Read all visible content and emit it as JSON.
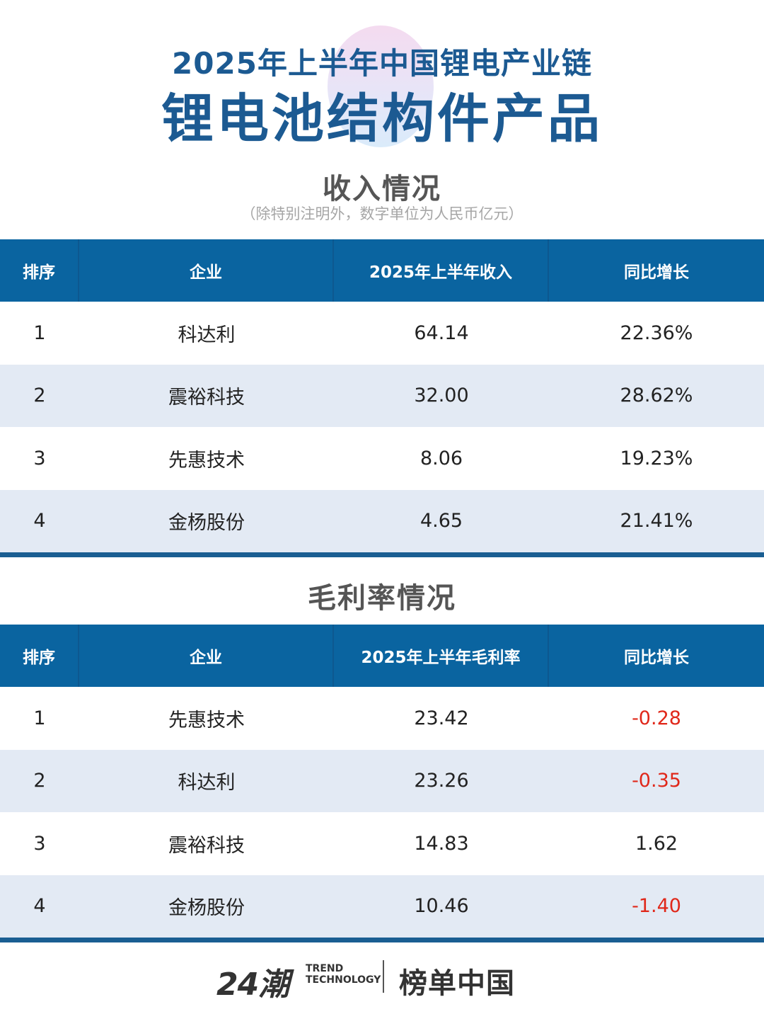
{
  "header": {
    "title_line1": "2025年上半年中国锂电产业链",
    "title_line2": "锂电池结构件产品"
  },
  "revenue": {
    "section_title": "收入情况",
    "note": "（除特别注明外，数字单位为人民币亿元）",
    "headers": [
      "排序",
      "企业",
      "2025年上半年收入",
      "同比增长"
    ],
    "rows": [
      {
        "rank": "1",
        "company": "科达利",
        "value": "64.14",
        "growth": "22.36%"
      },
      {
        "rank": "2",
        "company": "震裕科技",
        "value": "32.00",
        "growth": "28.62%"
      },
      {
        "rank": "3",
        "company": "先惠技术",
        "value": "8.06",
        "growth": "19.23%"
      },
      {
        "rank": "4",
        "company": "金杨股份",
        "value": "4.65",
        "growth": "21.41%"
      }
    ]
  },
  "margin": {
    "section_title": "毛利率情况",
    "headers": [
      "排序",
      "企业",
      "2025年上半年毛利率",
      "同比增长"
    ],
    "rows": [
      {
        "rank": "1",
        "company": "先惠技术",
        "value": "23.42",
        "growth": "-0.28"
      },
      {
        "rank": "2",
        "company": "科达利",
        "value": "23.26",
        "growth": "-0.35"
      },
      {
        "rank": "3",
        "company": "震裕科技",
        "value": "14.83",
        "growth": "1.62"
      },
      {
        "rank": "4",
        "company": "金杨股份",
        "value": "10.46",
        "growth": "-1.40"
      }
    ]
  },
  "footer": {
    "brand_num": "24潮",
    "brand_en_1": "TREND",
    "brand_en_2": "TECHNOLOGY",
    "brand_cn": "榜单中国"
  },
  "colors": {
    "header_bg": "#0a64a0",
    "title": "#1c5a92",
    "stripe": "#e3eaf4",
    "negative": "#e0281a"
  }
}
